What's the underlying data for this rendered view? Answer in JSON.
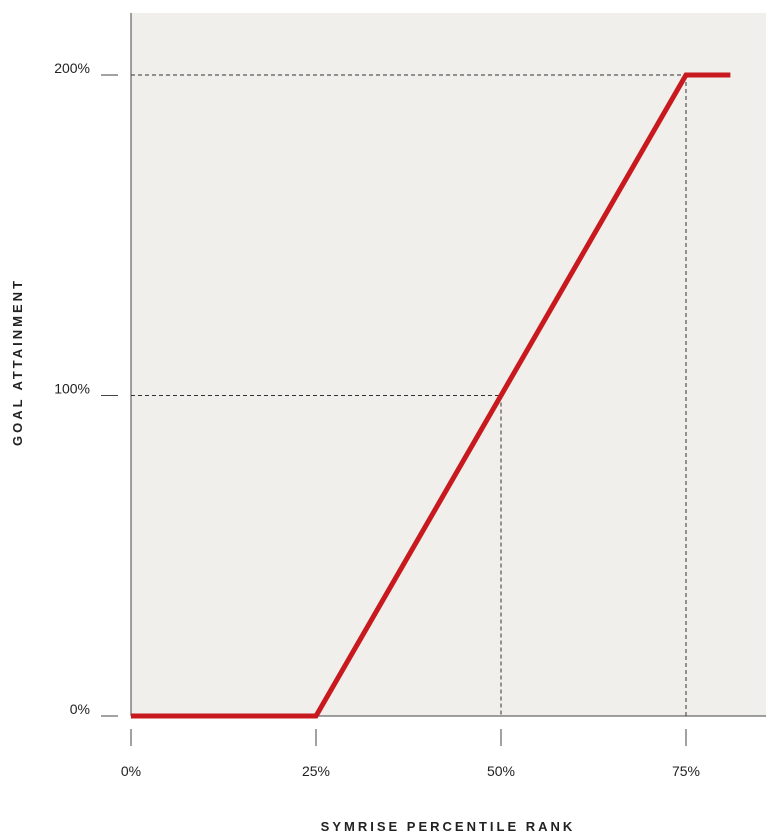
{
  "chart_data": {
    "type": "line",
    "title": "",
    "xlabel": "SYMRISE PERCENTILE RANK",
    "ylabel": "GOAL ATTAINMENT",
    "xlim": [
      0,
      85
    ],
    "ylim": [
      0,
      200
    ],
    "x_ticks": [
      {
        "value": 0,
        "label": "0%"
      },
      {
        "value": 25,
        "label": "25%"
      },
      {
        "value": 50,
        "label": "50%"
      },
      {
        "value": 75,
        "label": "75%"
      }
    ],
    "y_ticks": [
      {
        "value": 0,
        "label": "0%"
      },
      {
        "value": 100,
        "label": "100%"
      },
      {
        "value": 200,
        "label": "200%"
      }
    ],
    "series": [
      {
        "points": [
          {
            "x": 0,
            "y": 0
          },
          {
            "x": 25,
            "y": 0
          },
          {
            "x": 50,
            "y": 100
          },
          {
            "x": 75,
            "y": 200
          },
          {
            "x": 81,
            "y": 200
          }
        ],
        "color": "#c8191e"
      }
    ],
    "reference_lines": [
      {
        "x": 50,
        "y": 100
      },
      {
        "x": 75,
        "y": 200
      }
    ],
    "grid": false,
    "legend": "none",
    "plot_background": "#f1efec",
    "axis_color": "#444444"
  }
}
